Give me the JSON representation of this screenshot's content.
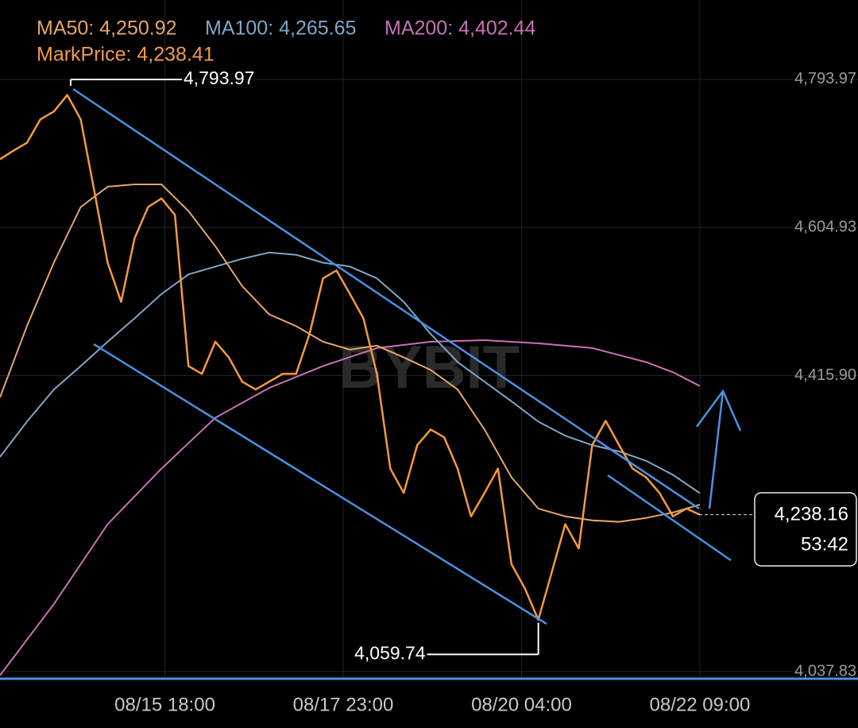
{
  "chart_data": {
    "type": "line",
    "watermark": "BYBIT",
    "xlim": [
      0,
      255
    ],
    "ylim": [
      4027.7,
      4895.4
    ],
    "xticks": [
      {
        "value": 49,
        "label": "08/15 18:00"
      },
      {
        "value": 102,
        "label": "08/17 23:00"
      },
      {
        "value": 155,
        "label": "08/20 04:00"
      },
      {
        "value": 208,
        "label": "08/22 09:00"
      }
    ],
    "yticks": [
      {
        "value": 4793.97,
        "label": "4,793.97"
      },
      {
        "value": 4604.93,
        "label": "4,604.93"
      },
      {
        "value": 4415.9,
        "label": "4,415.90"
      },
      {
        "value": 4037.83,
        "label": "4,037.83"
      }
    ],
    "grid": true,
    "legend": [
      "MA50: 4,250.92",
      "MA100: 4,265.65",
      "MA200: 4,402.44",
      "MarkPrice: 4,238.41"
    ],
    "legend_colors": [
      "#e3a868",
      "#7ea6c8",
      "#c872b4",
      "#f29a4a"
    ],
    "series": [
      {
        "name": "Price",
        "color": "#f59a3c",
        "width": 2.5,
        "x": [
          0,
          4,
          8,
          12,
          16,
          20,
          24,
          28,
          32,
          36,
          40,
          44,
          48,
          52,
          56,
          60,
          64,
          68,
          72,
          76,
          80,
          84,
          88,
          92,
          96,
          100,
          104,
          108,
          112,
          116,
          120,
          124,
          128,
          132,
          136,
          140,
          144,
          148,
          152,
          156,
          160,
          164,
          168,
          172,
          176,
          180,
          184,
          188,
          192,
          196,
          200,
          204,
          208
        ],
        "values": [
          4692,
          4703,
          4713,
          4743,
          4753,
          4774,
          4743,
          4652,
          4560,
          4510,
          4591,
          4631,
          4642,
          4621,
          4428,
          4418,
          4459,
          4439,
          4408,
          4398,
          4408,
          4418,
          4418,
          4469,
          4540,
          4550,
          4520,
          4489,
          4418,
          4297,
          4266,
          4327,
          4347,
          4337,
          4297,
          4236,
          4266,
          4297,
          4175,
          4144,
          4104,
          4165,
          4226,
          4195,
          4327,
          4358,
          4327,
          4297,
          4286,
          4266,
          4236,
          4246,
          4238.16
        ]
      },
      {
        "name": "MA50",
        "color": "#e3a868",
        "width": 2,
        "x": [
          0,
          8,
          16,
          24,
          32,
          40,
          48,
          56,
          64,
          72,
          80,
          88,
          96,
          104,
          112,
          120,
          128,
          136,
          144,
          152,
          160,
          168,
          176,
          184,
          192,
          200,
          208
        ],
        "values": [
          4388,
          4479,
          4560,
          4631,
          4657,
          4660,
          4660,
          4626,
          4581,
          4530,
          4494,
          4479,
          4459,
          4449,
          4454,
          4439,
          4423,
          4398,
          4347,
          4286,
          4246,
          4236,
          4231,
          4229,
          4234,
          4241,
          4250.92
        ]
      },
      {
        "name": "MA100",
        "color": "#7ea6c8",
        "width": 2,
        "x": [
          0,
          8,
          16,
          24,
          32,
          40,
          48,
          56,
          64,
          72,
          80,
          88,
          96,
          104,
          112,
          120,
          128,
          136,
          144,
          152,
          160,
          168,
          176,
          184,
          192,
          200,
          208
        ],
        "values": [
          4312,
          4357,
          4398,
          4428,
          4459,
          4489,
          4520,
          4545,
          4555,
          4565,
          4573,
          4570,
          4560,
          4555,
          4540,
          4510,
          4469,
          4433,
          4408,
          4383,
          4357,
          4339,
          4327,
          4319,
          4307,
          4289,
          4265.65
        ]
      },
      {
        "name": "MA200",
        "color": "#c872b4",
        "width": 2,
        "x": [
          0,
          16,
          32,
          48,
          64,
          80,
          96,
          112,
          128,
          144,
          160,
          176,
          192,
          200,
          208
        ],
        "values": [
          4033,
          4124,
          4226,
          4297,
          4362,
          4400,
          4428,
          4451,
          4459,
          4461,
          4457,
          4451,
          4433,
          4420,
          4402.44
        ]
      }
    ],
    "annotations": [
      {
        "x": 21,
        "value": 4793.97,
        "label": "4,793.97"
      },
      {
        "x": 160,
        "value": 4059.74,
        "label": "4,059.74"
      }
    ],
    "last_price": {
      "value": 4238.16,
      "label": "4,238.16"
    },
    "countdown": "53:42"
  }
}
